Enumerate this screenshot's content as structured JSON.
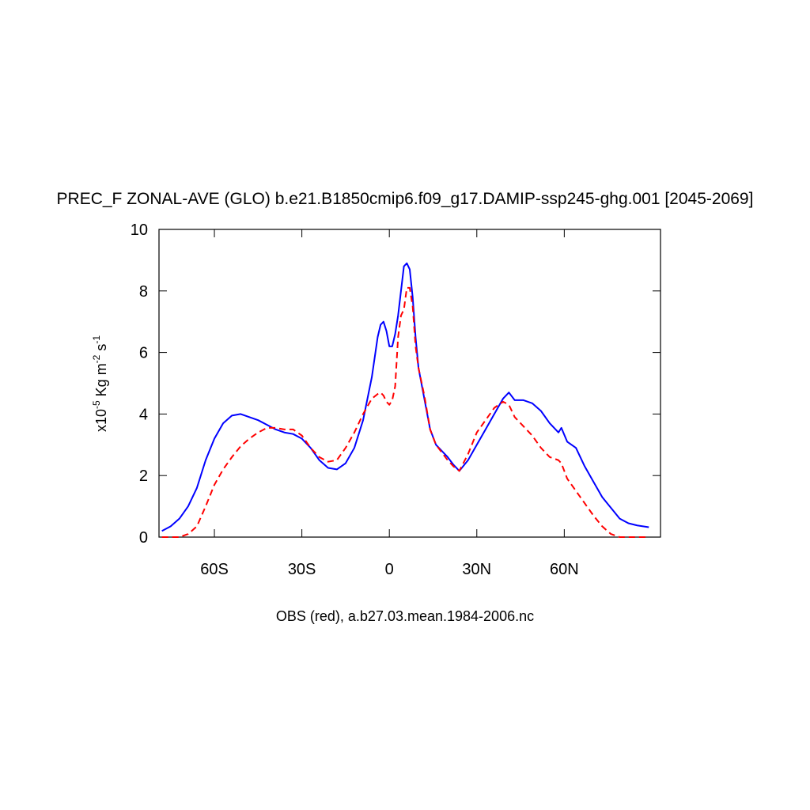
{
  "chart_data": {
    "type": "line",
    "title": "PREC_F ZONAL-AVE (GLO) b.e21.B1850cmip6.f09_g17.DAMIP-ssp245-ghg.001 [2045-2069]",
    "xlabel": "OBS (red), a.b27.03.mean.1984-2006.nc",
    "ylabel_parts": [
      "x10",
      "-5",
      " Kg m",
      "-2",
      " s",
      "-1"
    ],
    "x": [
      -78,
      -75,
      -72,
      -69,
      -66,
      -63,
      -60,
      -57,
      -54,
      -51,
      -48,
      -45,
      -42,
      -39,
      -36,
      -33,
      -30,
      -27,
      -24,
      -21,
      -18,
      -15,
      -12,
      -9,
      -6,
      -4,
      -3,
      -2,
      -1,
      0,
      1,
      2,
      3,
      4,
      5,
      6,
      7,
      8,
      9,
      10,
      12,
      14,
      16,
      18,
      20,
      22,
      24,
      27,
      30,
      33,
      36,
      39,
      41,
      43,
      46,
      49,
      52,
      55,
      58,
      59,
      61,
      64,
      67,
      70,
      73,
      76,
      79,
      82,
      85,
      89
    ],
    "series": [
      {
        "color": "#0000ff",
        "dash": false,
        "values": [
          0.2,
          0.35,
          0.6,
          1.0,
          1.6,
          2.5,
          3.2,
          3.7,
          3.95,
          4.0,
          3.9,
          3.8,
          3.65,
          3.5,
          3.4,
          3.35,
          3.2,
          2.9,
          2.5,
          2.25,
          2.2,
          2.4,
          2.9,
          3.8,
          5.2,
          6.5,
          6.9,
          7.0,
          6.7,
          6.2,
          6.2,
          6.6,
          7.2,
          8.0,
          8.8,
          8.9,
          8.7,
          7.8,
          6.5,
          5.5,
          4.5,
          3.5,
          3.0,
          2.8,
          2.6,
          2.35,
          2.15,
          2.5,
          3.0,
          3.5,
          4.0,
          4.5,
          4.7,
          4.45,
          4.45,
          4.35,
          4.1,
          3.7,
          3.4,
          3.55,
          3.1,
          2.9,
          2.3,
          1.8,
          1.3,
          0.95,
          0.6,
          0.45,
          0.38,
          0.32
        ]
      },
      {
        "color": "#ff0000",
        "dash": true,
        "values": [
          0,
          0,
          0,
          0.1,
          0.35,
          1.0,
          1.7,
          2.2,
          2.6,
          2.95,
          3.2,
          3.4,
          3.55,
          3.55,
          3.5,
          3.5,
          3.3,
          2.9,
          2.6,
          2.45,
          2.5,
          2.9,
          3.4,
          4.0,
          4.5,
          4.65,
          4.7,
          4.6,
          4.4,
          4.3,
          4.45,
          4.9,
          6.5,
          7.2,
          7.4,
          8.1,
          8.1,
          7.5,
          6.2,
          5.5,
          4.6,
          3.5,
          3.0,
          2.75,
          2.5,
          2.3,
          2.15,
          2.7,
          3.4,
          3.8,
          4.2,
          4.4,
          4.3,
          3.9,
          3.6,
          3.3,
          2.9,
          2.6,
          2.5,
          2.4,
          1.9,
          1.5,
          1.1,
          0.7,
          0.35,
          0.1,
          0,
          0,
          0,
          0
        ]
      }
    ],
    "xlim": [
      -79,
      93
    ],
    "xticks": [
      {
        "value": -60,
        "label": "60S"
      },
      {
        "value": -30,
        "label": "30S"
      },
      0,
      {
        "value": 30,
        "label": "30N"
      },
      {
        "value": 60,
        "label": "60N"
      }
    ],
    "ylim": [
      0,
      10
    ],
    "yticks": [
      0,
      2,
      4,
      6,
      8,
      10
    ]
  }
}
